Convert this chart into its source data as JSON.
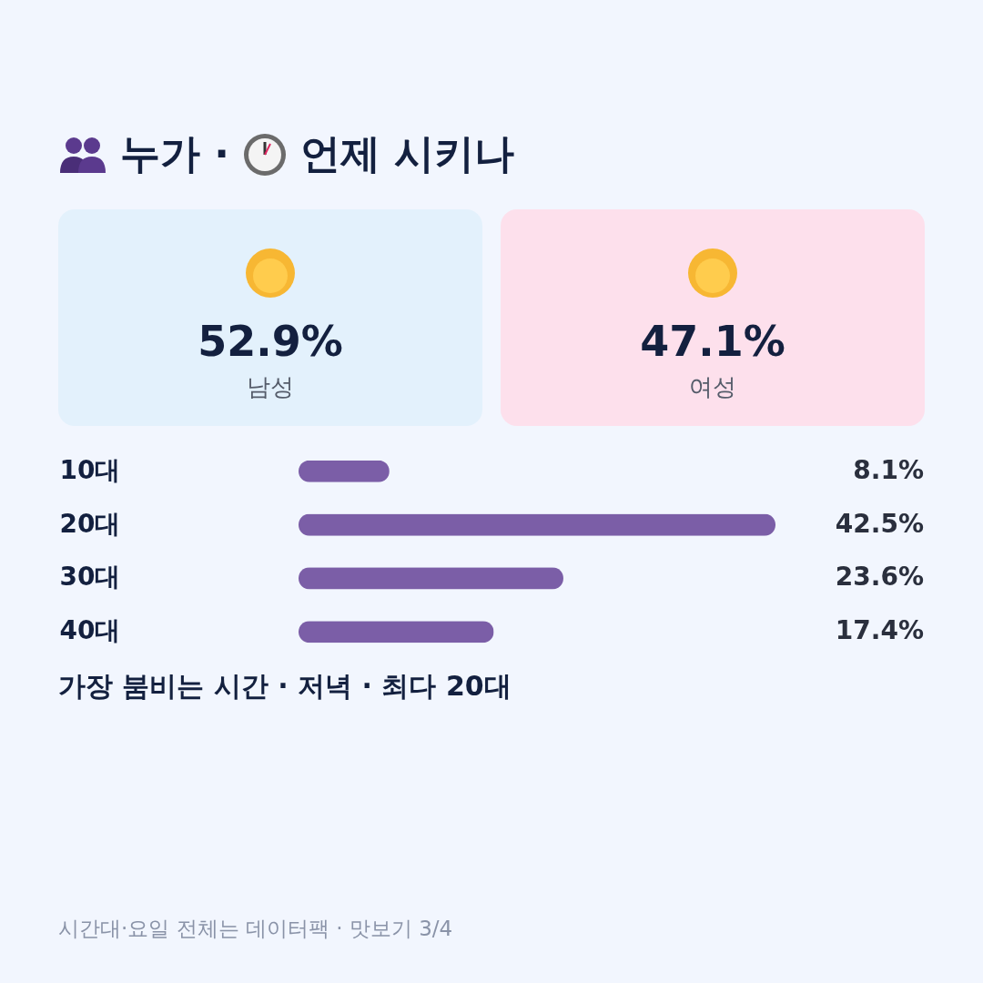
{
  "chart_data": [
    {
      "type": "other",
      "title": "누가 · 언제 시키나",
      "categories": [
        "남성",
        "여성"
      ],
      "value_labels": [
        "52.9%",
        "47.1%"
      ],
      "colors": [
        "#e3f1fc",
        "#fde0ec"
      ]
    },
    {
      "type": "bar",
      "orientation": "horizontal",
      "categories": [
        "10대",
        "20대",
        "30대",
        "40대"
      ],
      "values": [
        8.1,
        42.5,
        23.6,
        17.4
      ],
      "value_labels": [
        "8.1%",
        "42.5%",
        "23.6%",
        "17.4%"
      ],
      "color": "#7b5ea7",
      "xlim": [
        0,
        42.5
      ],
      "tick_labels": "y",
      "annotations": [
        "가장 붐비는 시간 · 저녁 · 최다 20대",
        "시간대·요일 전체는 데이터팩 · 맛보기 3/4"
      ]
    }
  ]
}
